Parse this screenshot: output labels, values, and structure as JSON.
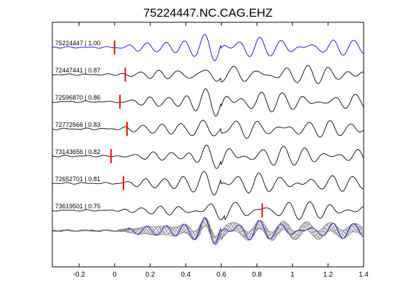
{
  "chart_data": {
    "type": "line",
    "title": "75224447.NC.CAG.EHZ",
    "xlim": [
      -0.35,
      1.4
    ],
    "x_ticks": [
      -0.2,
      0,
      0.2,
      0.4,
      0.6,
      0.8,
      1,
      1.2,
      1.4
    ],
    "x_tick_labels": [
      "-0.2",
      "0",
      "0.2",
      "0.4",
      "0.6",
      "0.8",
      "1",
      "1.2",
      "1.4"
    ],
    "xlabel": "",
    "ylabel": "",
    "grid": false,
    "legend": "none",
    "colors": {
      "reference": "#0000ff",
      "trace": "#000000",
      "pick": "#ff0000",
      "stack": "#808080"
    },
    "traces": [
      {
        "label": "75224447 | 1.00",
        "id": "75224447",
        "cc": 1.0,
        "pick_time": 0.0,
        "color": "#0000ff"
      },
      {
        "label": "72447441 | 0.87",
        "id": "72447441",
        "cc": 0.87,
        "pick_time": 0.06,
        "color": "#000000"
      },
      {
        "label": "72596870 | 0.86",
        "id": "72596870",
        "cc": 0.86,
        "pick_time": 0.03,
        "color": "#000000"
      },
      {
        "label": "72772666 | 0.83",
        "id": "72772666",
        "cc": 0.83,
        "pick_time": 0.07,
        "color": "#000000"
      },
      {
        "label": "73143656 | 0.82",
        "id": "73143656",
        "cc": 0.82,
        "pick_time": -0.02,
        "color": "#000000"
      },
      {
        "label": "72652701 | 0.81",
        "id": "72652701",
        "cc": 0.81,
        "pick_time": 0.05,
        "color": "#000000"
      },
      {
        "label": "73619501 | 0.75",
        "id": "73619501",
        "cc": 0.75,
        "pick_time": 0.83,
        "color": "#000000"
      }
    ],
    "stack": {
      "label": "",
      "description_color": "#808080"
    }
  }
}
